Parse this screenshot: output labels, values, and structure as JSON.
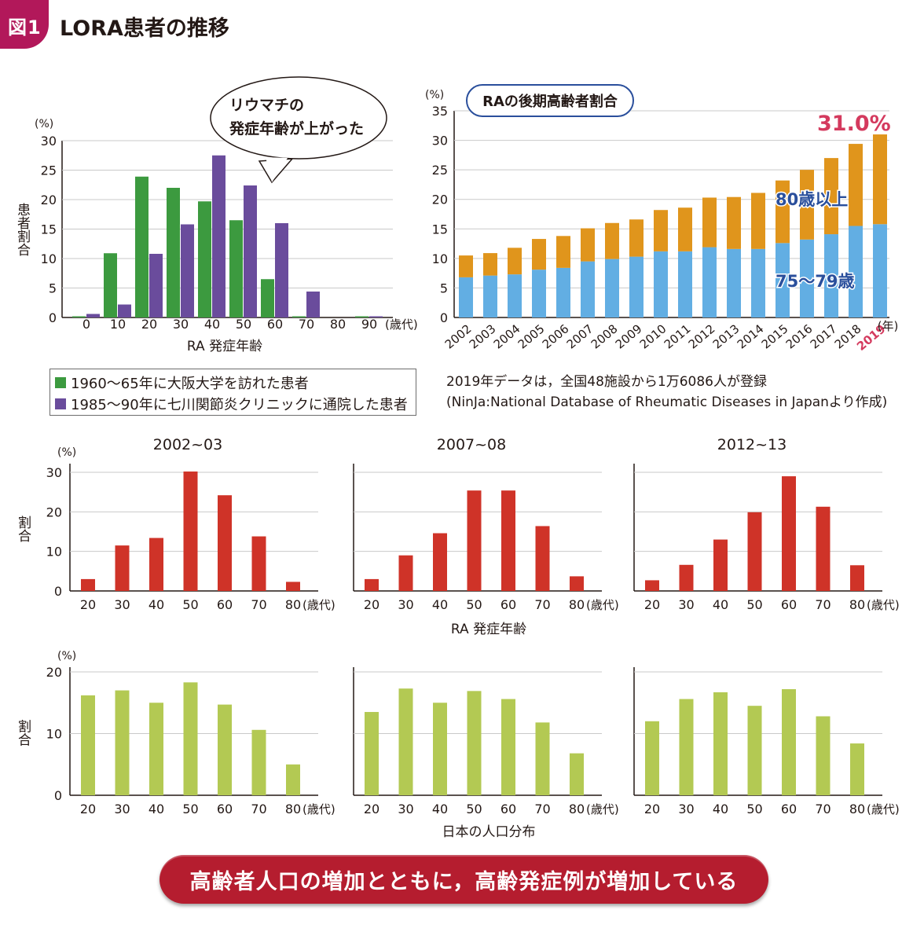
{
  "header": {
    "badge": "図1",
    "title": "LORA患者の推移"
  },
  "legend": {
    "items": [
      {
        "label": "1960〜65年に大阪大学を訪れた患者",
        "color": "#3c9a3f"
      },
      {
        "label": "1985〜90年に七川関節炎クリニックに通院した患者",
        "color": "#6a4c9c"
      }
    ]
  },
  "source_note": {
    "line1": "2019年データは，全国48施設から1万6086人が登録",
    "line2": "(NinJa:National Database of Rheumatic Diseases in Japanより作成)"
  },
  "banner": {
    "text": "高齢者人口の増加とともに，高齢発症例が増加している"
  },
  "colors": {
    "green": "#3c9a3f",
    "purple": "#6a4c9c",
    "orange": "#e0951c",
    "blue": "#62aee3",
    "red": "#cf3328",
    "lightgreen": "#b3c953",
    "highlight": "#d43a5e",
    "textblue": "#2a4f9c"
  },
  "chart_data": [
    {
      "id": "age-of-onset",
      "type": "bar",
      "title": "",
      "ylabel": "患者割合",
      "yunit": "(%)",
      "xlabel": "RA 発症年齢",
      "xunit": "(歳代)",
      "ylim": [
        0,
        30
      ],
      "yticks": [
        0,
        5,
        10,
        15,
        20,
        25,
        30
      ],
      "categories": [
        "0",
        "10",
        "20",
        "30",
        "40",
        "50",
        "60",
        "70",
        "80",
        "90"
      ],
      "first_bin": "0",
      "series": [
        {
          "name": "1960〜65年に大阪大学を訪れた患者",
          "color": "#3c9a3f",
          "values": [
            0.2,
            10.9,
            23.9,
            22.0,
            19.7,
            16.5,
            6.5,
            0.2,
            0,
            0.2
          ]
        },
        {
          "name": "1985〜90年に七川関節炎クリニックに通院した患者",
          "color": "#6a4c9c",
          "values": [
            0.6,
            2.2,
            10.8,
            15.8,
            27.5,
            22.4,
            16.0,
            4.4,
            0,
            0.2
          ]
        }
      ],
      "callout": {
        "line1": "リウマチの",
        "line2": "発症年齢が上がった"
      }
    },
    {
      "id": "elderly-ratio",
      "type": "bar",
      "stacked": true,
      "title": "RAの後期高齢者割合",
      "yunit": "(%)",
      "xunit": "(年)",
      "ylim": [
        0,
        35
      ],
      "yticks": [
        0,
        5,
        10,
        15,
        20,
        25,
        30,
        35
      ],
      "categories": [
        "2002",
        "2003",
        "2004",
        "2005",
        "2006",
        "2007",
        "2008",
        "2009",
        "2010",
        "2011",
        "2012",
        "2013",
        "2014",
        "2015",
        "2016",
        "2017",
        "2018",
        "2019"
      ],
      "series": [
        {
          "name": "75〜79歳",
          "color": "#62aee3",
          "values": [
            6.8,
            7.1,
            7.3,
            8.1,
            8.4,
            9.5,
            9.9,
            10.3,
            11.2,
            11.2,
            11.9,
            11.6,
            11.6,
            12.6,
            13.2,
            14.1,
            15.5,
            15.8
          ]
        },
        {
          "name": "80歳以上",
          "color": "#e0951c",
          "values": [
            3.7,
            3.8,
            4.5,
            5.2,
            5.4,
            5.6,
            6.1,
            6.3,
            7.0,
            7.4,
            8.4,
            8.8,
            9.5,
            10.6,
            11.8,
            12.9,
            13.9,
            15.2
          ]
        }
      ],
      "highlight": {
        "category": "2019",
        "label": "31.0%"
      }
    },
    {
      "id": "ra-onset-2002-03",
      "type": "bar",
      "title": "2002~03",
      "ylabel": "割合",
      "yunit": "(%)",
      "xunit": "(歳代)",
      "ylim": [
        0,
        31
      ],
      "yticks": [
        0,
        10,
        20,
        30
      ],
      "categories": [
        "20",
        "30",
        "40",
        "50",
        "60",
        "70",
        "80"
      ],
      "values": [
        3.0,
        11.5,
        13.4,
        30.2,
        24.2,
        13.8,
        2.3
      ],
      "color": "#cf3328"
    },
    {
      "id": "ra-onset-2007-08",
      "type": "bar",
      "title": "2007~08",
      "xunit": "(歳代)",
      "ylim": [
        0,
        31
      ],
      "yticks": [],
      "categories": [
        "20",
        "30",
        "40",
        "50",
        "60",
        "70",
        "80"
      ],
      "values": [
        3.0,
        9.0,
        14.6,
        25.4,
        25.4,
        16.4,
        3.7
      ],
      "color": "#cf3328"
    },
    {
      "id": "ra-onset-2012-13",
      "type": "bar",
      "title": "2012~13",
      "xunit": "(歳代)",
      "ylim": [
        0,
        31
      ],
      "yticks": [],
      "categories": [
        "20",
        "30",
        "40",
        "50",
        "60",
        "70",
        "80"
      ],
      "values": [
        2.7,
        6.6,
        13.0,
        19.9,
        29.0,
        21.3,
        6.5
      ],
      "color": "#cf3328"
    },
    {
      "id": "population-2002-03",
      "type": "bar",
      "ylabel": "割合",
      "yunit": "(%)",
      "xunit": "(歳代)",
      "ylim": [
        0,
        20
      ],
      "yticks": [
        0,
        10,
        20
      ],
      "categories": [
        "20",
        "30",
        "40",
        "50",
        "60",
        "70",
        "80"
      ],
      "values": [
        16.2,
        17.0,
        15.0,
        18.3,
        14.7,
        10.6,
        5.0
      ],
      "color": "#b3c953"
    },
    {
      "id": "population-2007-08",
      "type": "bar",
      "xunit": "(歳代)",
      "ylim": [
        0,
        20
      ],
      "yticks": [],
      "categories": [
        "20",
        "30",
        "40",
        "50",
        "60",
        "70",
        "80"
      ],
      "values": [
        13.5,
        17.3,
        15.0,
        16.9,
        15.6,
        11.8,
        6.8
      ],
      "color": "#b3c953"
    },
    {
      "id": "population-2012-13",
      "type": "bar",
      "xunit": "(歳代)",
      "ylim": [
        0,
        20
      ],
      "yticks": [],
      "categories": [
        "20",
        "30",
        "40",
        "50",
        "60",
        "70",
        "80"
      ],
      "values": [
        12.0,
        15.6,
        16.7,
        14.5,
        17.2,
        12.8,
        8.4
      ],
      "color": "#b3c953"
    }
  ],
  "shared_labels": {
    "ra_onset_xlabel": "RA 発症年齢",
    "population_xlabel": "日本の人口分布"
  }
}
